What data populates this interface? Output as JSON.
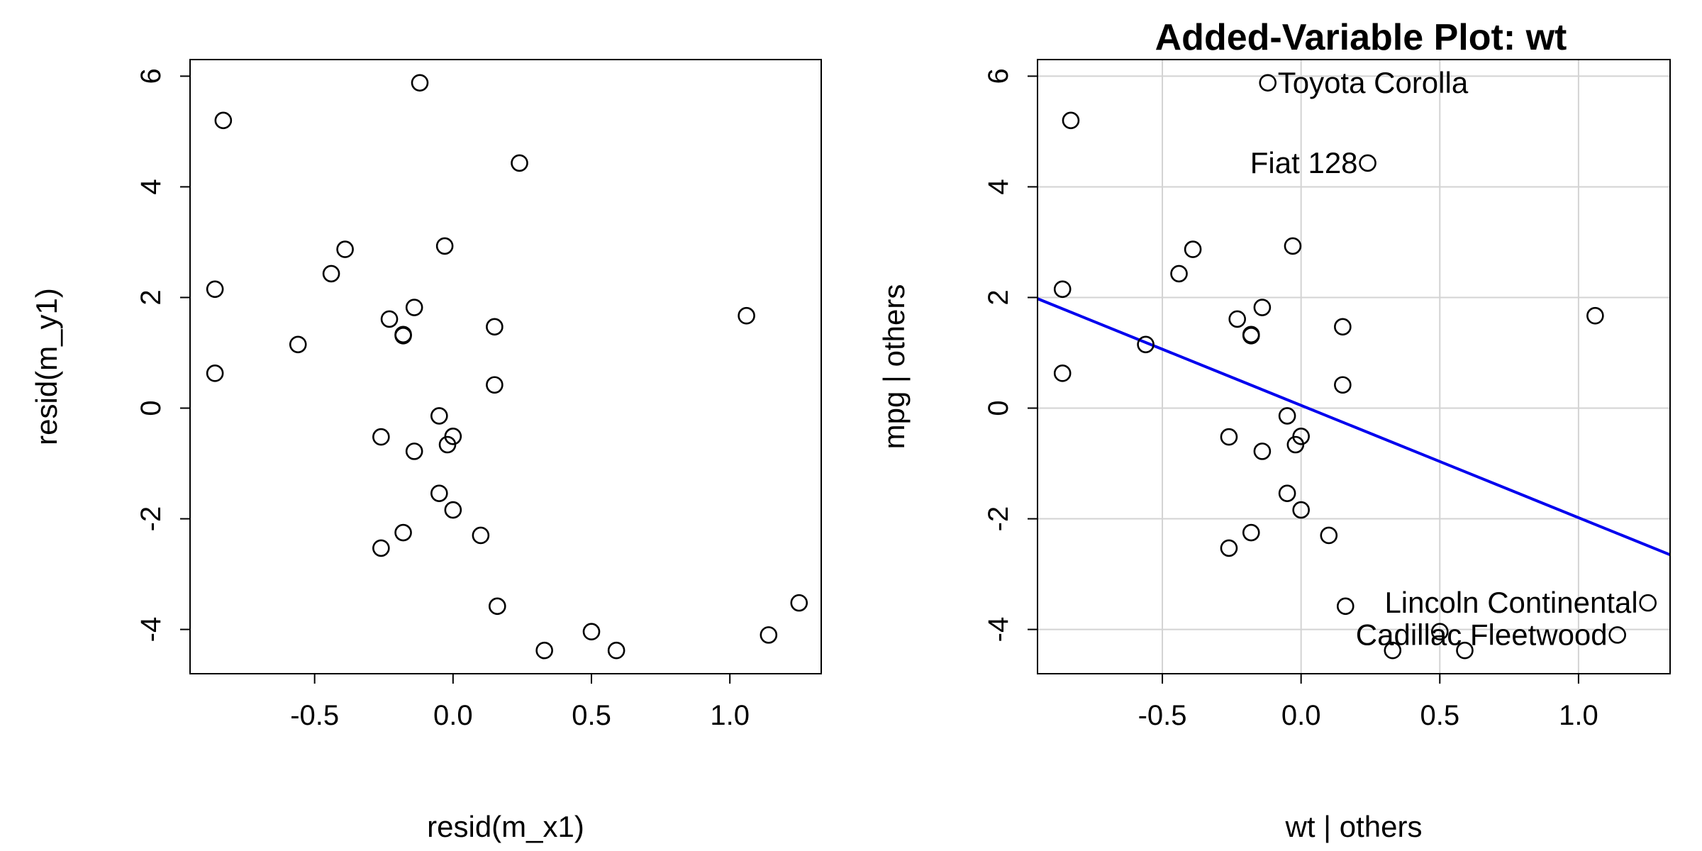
{
  "chart_data": [
    {
      "type": "scatter",
      "title": "",
      "xlabel": "resid(m_x1)",
      "ylabel": "resid(m_y1)",
      "xlim": [
        -0.95,
        1.33
      ],
      "ylim": [
        -4.8,
        6.3
      ],
      "x_ticks": [
        -0.5,
        0.0,
        0.5,
        1.0
      ],
      "x_tick_labels": [
        "-0.5",
        "0.0",
        "0.5",
        "1.0"
      ],
      "y_ticks": [
        -4,
        -2,
        0,
        2,
        4,
        6
      ],
      "y_tick_labels": [
        "-4",
        "-2",
        "0",
        "2",
        "4",
        "6"
      ],
      "grid": false,
      "points": [
        {
          "x": -0.12,
          "y": 5.88
        },
        {
          "x": -0.83,
          "y": 5.2
        },
        {
          "x": 0.24,
          "y": 4.43
        },
        {
          "x": -0.03,
          "y": 2.93
        },
        {
          "x": -0.39,
          "y": 2.87
        },
        {
          "x": -0.44,
          "y": 2.43
        },
        {
          "x": -0.86,
          "y": 2.15
        },
        {
          "x": -0.14,
          "y": 1.82
        },
        {
          "x": -0.23,
          "y": 1.61
        },
        {
          "x": 1.06,
          "y": 1.67
        },
        {
          "x": 0.15,
          "y": 1.47
        },
        {
          "x": -0.18,
          "y": 1.33
        },
        {
          "x": -0.18,
          "y": 1.31
        },
        {
          "x": -0.56,
          "y": 1.15
        },
        {
          "x": -0.86,
          "y": 0.63
        },
        {
          "x": 0.15,
          "y": 0.42
        },
        {
          "x": -0.05,
          "y": -0.14
        },
        {
          "x": -0.26,
          "y": -0.52
        },
        {
          "x": 0.0,
          "y": -0.51
        },
        {
          "x": -0.02,
          "y": -0.66
        },
        {
          "x": -0.14,
          "y": -0.78
        },
        {
          "x": -0.05,
          "y": -1.54
        },
        {
          "x": 0.0,
          "y": -1.84
        },
        {
          "x": -0.18,
          "y": -2.25
        },
        {
          "x": 0.1,
          "y": -2.3
        },
        {
          "x": -0.26,
          "y": -2.53
        },
        {
          "x": 0.16,
          "y": -3.58
        },
        {
          "x": 1.25,
          "y": -3.52
        },
        {
          "x": 0.5,
          "y": -4.04
        },
        {
          "x": 1.14,
          "y": -4.1
        },
        {
          "x": 0.33,
          "y": -4.38
        },
        {
          "x": 0.59,
          "y": -4.38
        }
      ]
    },
    {
      "type": "scatter",
      "title": "Added-Variable Plot: wt",
      "xlabel": "wt | others",
      "ylabel": "mpg  | others",
      "xlim": [
        -0.95,
        1.33
      ],
      "ylim": [
        -4.8,
        6.3
      ],
      "x_ticks": [
        -0.5,
        0.0,
        0.5,
        1.0
      ],
      "x_tick_labels": [
        "-0.5",
        "0.0",
        "0.5",
        "1.0"
      ],
      "y_ticks": [
        -4,
        -2,
        0,
        2,
        4,
        6
      ],
      "y_tick_labels": [
        "-4",
        "-2",
        "0",
        "2",
        "4",
        "6"
      ],
      "grid": true,
      "line_color": "#0000ee",
      "regression_line": {
        "slope": -2.03,
        "intercept": 0.05
      },
      "points": [
        {
          "x": -0.12,
          "y": 5.88
        },
        {
          "x": -0.83,
          "y": 5.2
        },
        {
          "x": 0.24,
          "y": 4.43
        },
        {
          "x": -0.03,
          "y": 2.93
        },
        {
          "x": -0.39,
          "y": 2.87
        },
        {
          "x": -0.44,
          "y": 2.43
        },
        {
          "x": -0.86,
          "y": 2.15
        },
        {
          "x": -0.14,
          "y": 1.82
        },
        {
          "x": -0.23,
          "y": 1.61
        },
        {
          "x": 1.06,
          "y": 1.67
        },
        {
          "x": 0.15,
          "y": 1.47
        },
        {
          "x": -0.18,
          "y": 1.33
        },
        {
          "x": -0.18,
          "y": 1.31
        },
        {
          "x": -0.56,
          "y": 1.15
        },
        {
          "x": -0.86,
          "y": 0.63
        },
        {
          "x": 0.15,
          "y": 0.42
        },
        {
          "x": -0.05,
          "y": -0.14
        },
        {
          "x": -0.26,
          "y": -0.52
        },
        {
          "x": 0.0,
          "y": -0.51
        },
        {
          "x": -0.02,
          "y": -0.66
        },
        {
          "x": -0.14,
          "y": -0.78
        },
        {
          "x": -0.05,
          "y": -1.54
        },
        {
          "x": 0.0,
          "y": -1.84
        },
        {
          "x": -0.18,
          "y": -2.25
        },
        {
          "x": 0.1,
          "y": -2.3
        },
        {
          "x": -0.26,
          "y": -2.53
        },
        {
          "x": 0.16,
          "y": -3.58
        },
        {
          "x": 1.25,
          "y": -3.52
        },
        {
          "x": 0.5,
          "y": -4.04
        },
        {
          "x": 1.14,
          "y": -4.1
        },
        {
          "x": 0.33,
          "y": -4.38
        },
        {
          "x": 0.59,
          "y": -4.38
        }
      ],
      "labels": [
        {
          "text": "Toyota Corolla",
          "x": -0.12,
          "y": 5.88,
          "side": "right"
        },
        {
          "text": "Fiat 128",
          "x": 0.24,
          "y": 4.43,
          "side": "left"
        },
        {
          "text": "Lincoln Continental",
          "x": 1.25,
          "y": -3.52,
          "side": "left"
        },
        {
          "text": "Cadillac Fleetwood",
          "x": 1.14,
          "y": -4.1,
          "side": "left"
        }
      ]
    }
  ]
}
